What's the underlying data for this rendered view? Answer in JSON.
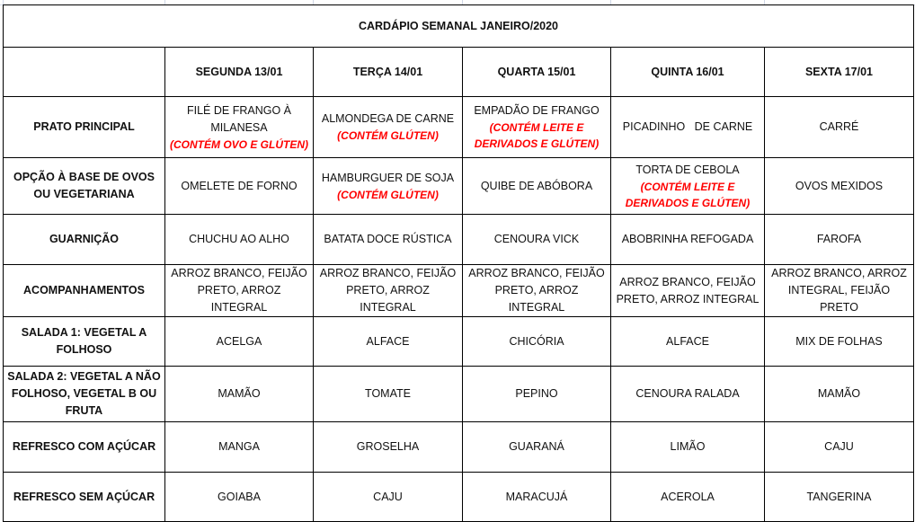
{
  "title": "CARDÁPIO SEMANAL JANEIRO/2020",
  "days": [
    "SEGUNDA 13/01",
    "TERÇA 14/01",
    "QUARTA 15/01",
    "QUINTA 16/01",
    "SEXTA 17/01"
  ],
  "rows": [
    {
      "label": "PRATO PRINCIPAL",
      "cells": [
        {
          "text": "FILÉ DE FRANGO À MILANESA",
          "note": "(CONTÉM OVO E GLÚTEN)"
        },
        {
          "text": "ALMONDEGA DE CARNE",
          "note": "(CONTÉM GLÚTEN)"
        },
        {
          "text": "EMPADÃO DE FRANGO",
          "note": "(CONTÉM LEITE E DERIVADOS E GLÚTEN)"
        },
        {
          "text": "PICADINHO   DE CARNE"
        },
        {
          "text": "CARRÉ"
        }
      ]
    },
    {
      "label": "OPÇÃO À BASE DE OVOS OU VEGETARIANA",
      "cells": [
        {
          "text": "OMELETE DE FORNO"
        },
        {
          "text": "HAMBURGUER DE SOJA",
          "note": "(CONTÉM GLÚTEN)"
        },
        {
          "text": "QUIBE DE ABÓBORA"
        },
        {
          "text": "TORTA DE CEBOLA",
          "note": "(CONTÉM LEITE E DERIVADOS E GLÚTEN)"
        },
        {
          "text": "OVOS MEXIDOS"
        }
      ]
    },
    {
      "label": "GUARNIÇÃO",
      "cells": [
        {
          "text": "CHUCHU AO ALHO"
        },
        {
          "text": "BATATA DOCE RÚSTICA"
        },
        {
          "text": "CENOURA VICK"
        },
        {
          "text": "ABOBRINHA REFOGADA"
        },
        {
          "text": "FAROFA"
        }
      ]
    },
    {
      "label": "ACOMPANHAMENTOS",
      "cells": [
        {
          "text": "ARROZ BRANCO, FEIJÃO PRETO, ARROZ INTEGRAL"
        },
        {
          "text": "ARROZ BRANCO, FEIJÃO PRETO, ARROZ INTEGRAL"
        },
        {
          "text": "ARROZ BRANCO, FEIJÃO PRETO, ARROZ INTEGRAL"
        },
        {
          "text": "ARROZ BRANCO, FEIJÃO PRETO, ARROZ INTEGRAL"
        },
        {
          "text": "ARROZ BRANCO, ARROZ INTEGRAL, FEIJÃO PRETO"
        }
      ]
    },
    {
      "label": "SALADA 1: VEGETAL A FOLHOSO",
      "cells": [
        {
          "text": "ACELGA"
        },
        {
          "text": "ALFACE"
        },
        {
          "text": "CHICÓRIA"
        },
        {
          "text": "ALFACE"
        },
        {
          "text": "MIX DE FOLHAS"
        }
      ]
    },
    {
      "label": "SALADA 2: VEGETAL A NÃO FOLHOSO, VEGETAL B OU FRUTA",
      "cells": [
        {
          "text": "MAMÃO"
        },
        {
          "text": "TOMATE"
        },
        {
          "text": "PEPINO"
        },
        {
          "text": "CENOURA RALADA"
        },
        {
          "text": "MAMÃO"
        }
      ]
    },
    {
      "label": "REFRESCO COM AÇÚCAR",
      "cells": [
        {
          "text": "MANGA"
        },
        {
          "text": "GROSELHA"
        },
        {
          "text": "GUARANÁ"
        },
        {
          "text": "LIMÃO"
        },
        {
          "text": "CAJU"
        }
      ]
    },
    {
      "label": "REFRESCO SEM AÇÚCAR",
      "cells": [
        {
          "text": "GOIABA"
        },
        {
          "text": "CAJU"
        },
        {
          "text": "MARACUJÁ"
        },
        {
          "text": "ACEROLA"
        },
        {
          "text": "TANGERINA"
        }
      ]
    }
  ]
}
